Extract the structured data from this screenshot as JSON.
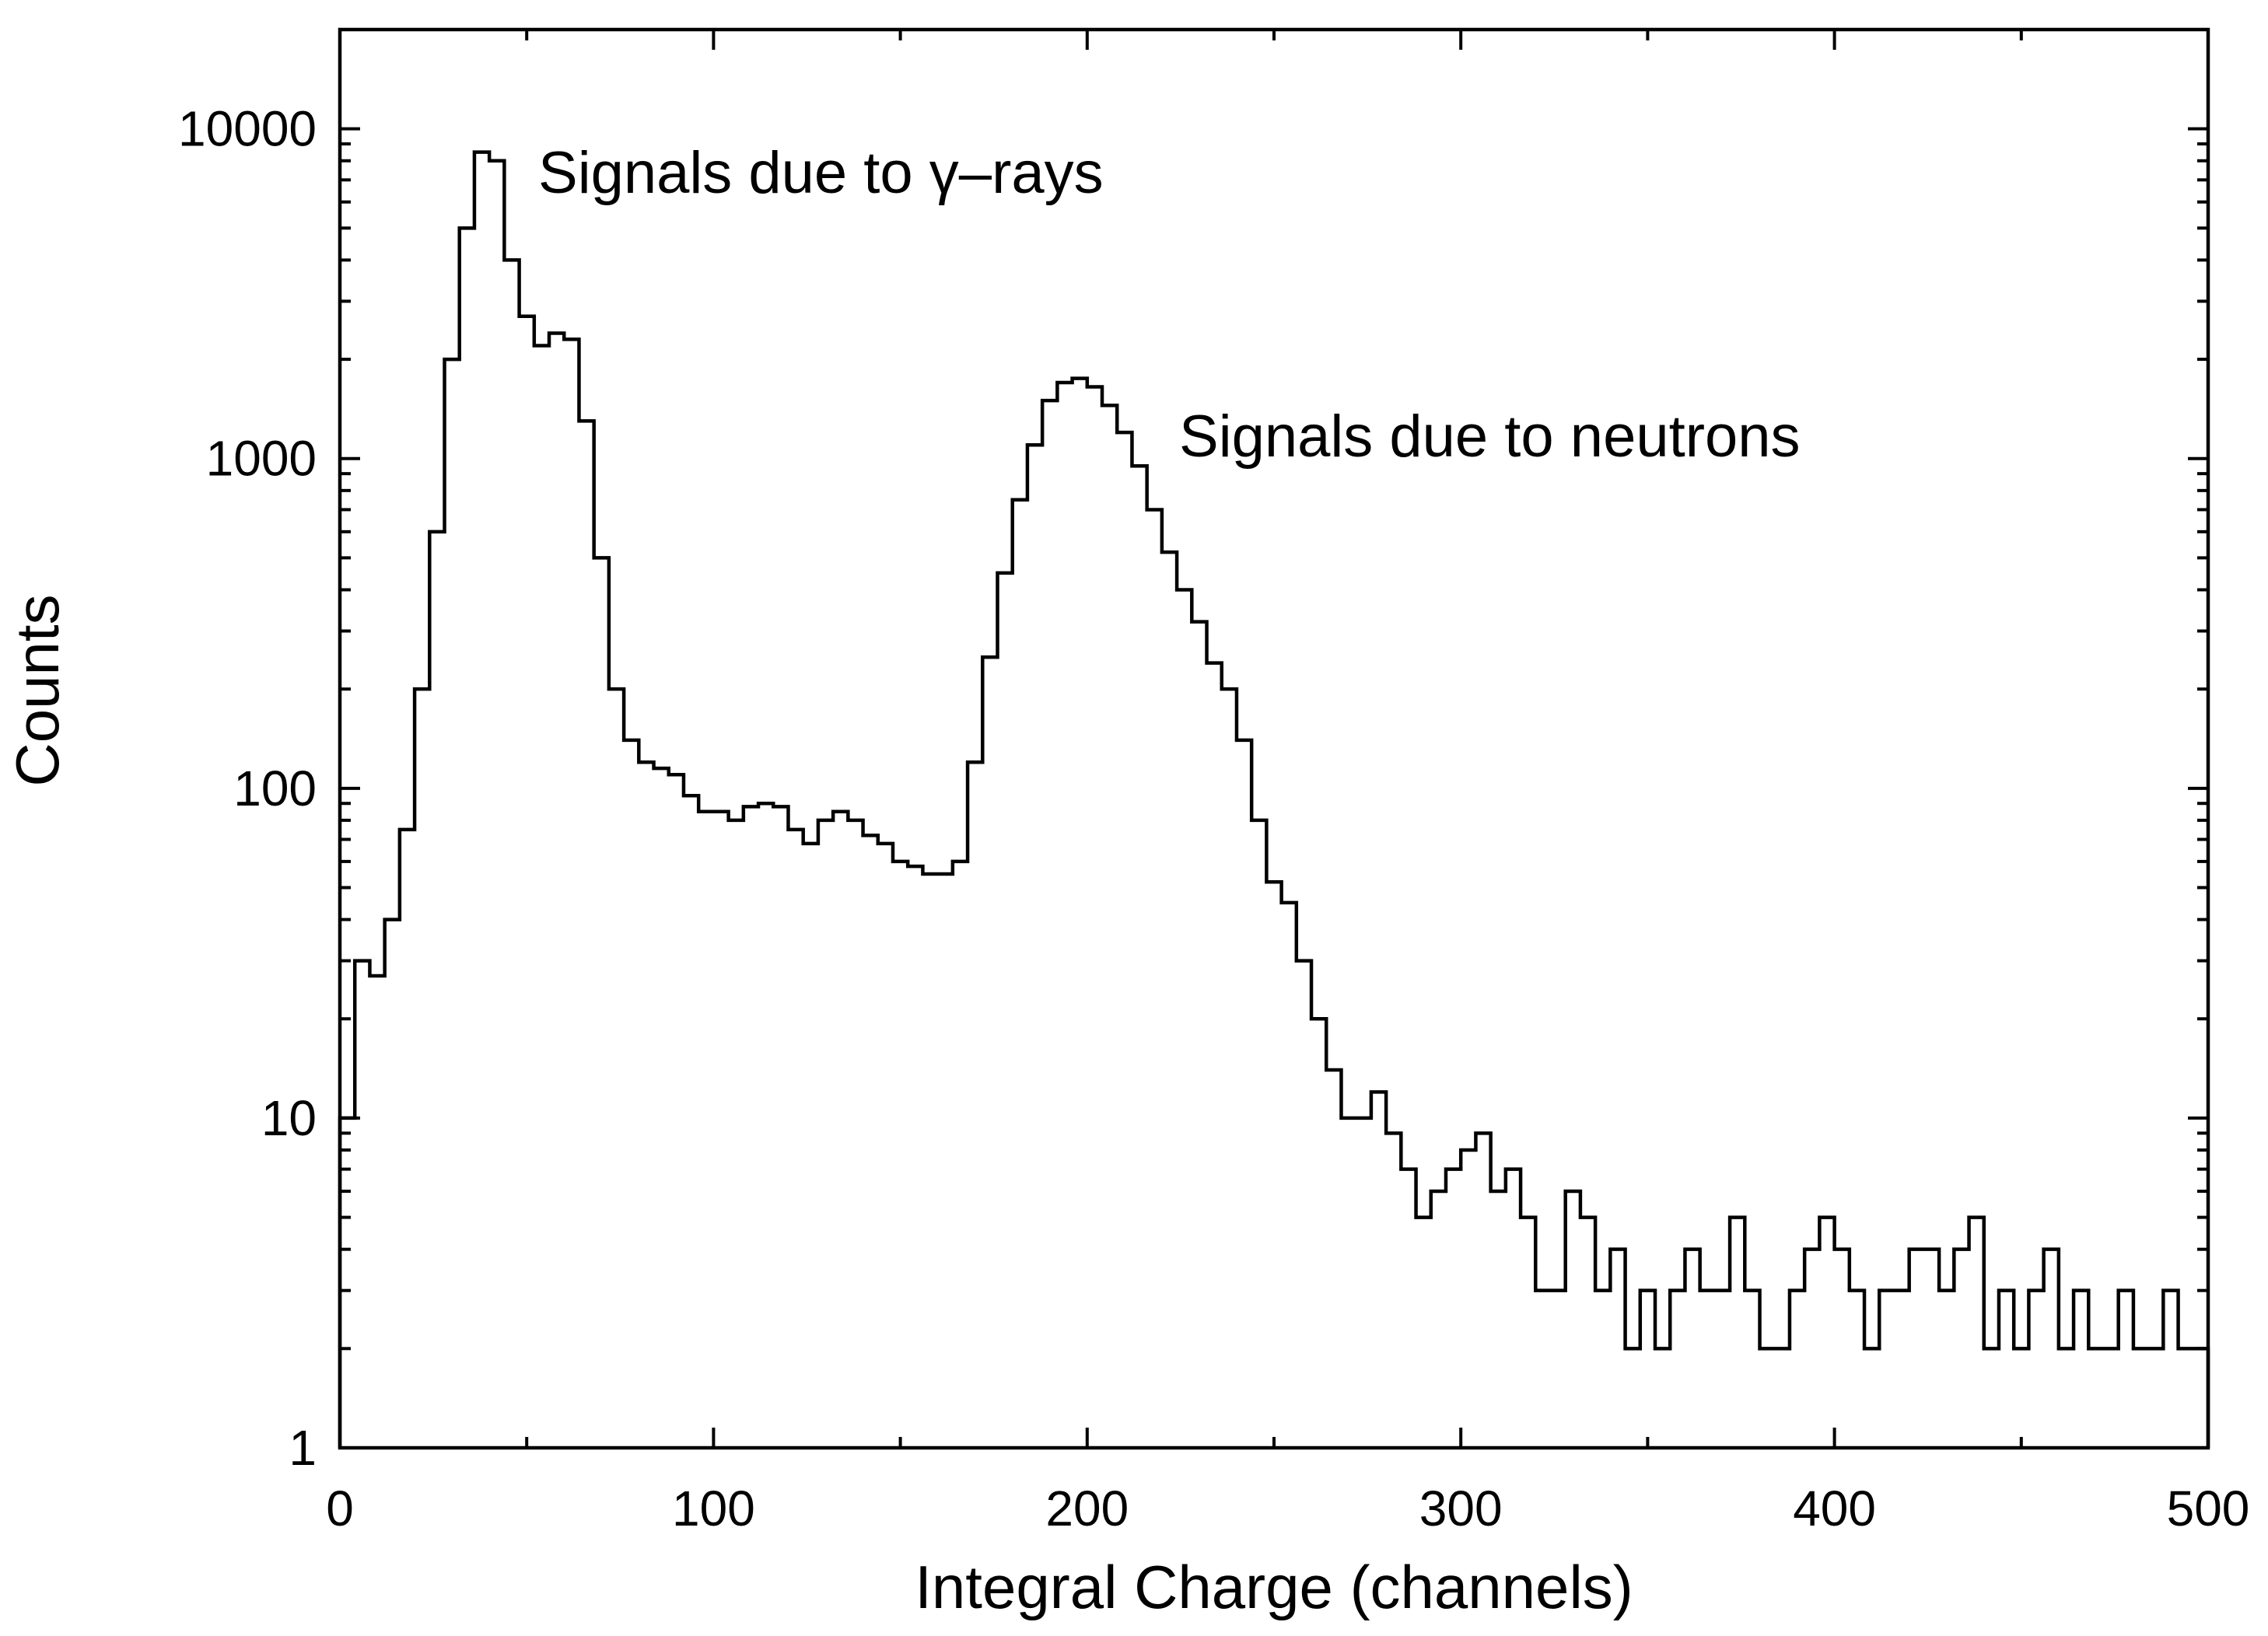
{
  "chart_data": {
    "type": "histogram",
    "xlabel": "Integral Charge (channels)",
    "ylabel": "Counts",
    "annotations": [
      "Signals due to γ–rays",
      "Signals due to neutrons"
    ],
    "bins": [
      0,
      4,
      8,
      12,
      16,
      20,
      24,
      28,
      32,
      36,
      40,
      44,
      48,
      52,
      56,
      60,
      64,
      68,
      72,
      76,
      80,
      84,
      88,
      92,
      96,
      100,
      104,
      108,
      112,
      116,
      120,
      124,
      128,
      132,
      136,
      140,
      144,
      148,
      152,
      156,
      160,
      164,
      168,
      172,
      176,
      180,
      184,
      188,
      192,
      196,
      200,
      204,
      208,
      212,
      216,
      220,
      224,
      228,
      232,
      236,
      240,
      244,
      248,
      252,
      256,
      260,
      264,
      268,
      272,
      276,
      280,
      284,
      288,
      292,
      296,
      300,
      304,
      308,
      312,
      316,
      320,
      324,
      328,
      332,
      336,
      340,
      344,
      348,
      352,
      356,
      360,
      364,
      368,
      372,
      376,
      380,
      384,
      388,
      392,
      396,
      400,
      404,
      408,
      412,
      416,
      420,
      424,
      428,
      432,
      436,
      440,
      444,
      448,
      452,
      456,
      460,
      464,
      468,
      472,
      476,
      480,
      484,
      488,
      492,
      496,
      500
    ],
    "values": [
      10,
      30,
      27,
      40,
      75,
      200,
      600,
      2000,
      5000,
      8500,
      8000,
      4000,
      2700,
      2200,
      2400,
      2300,
      1300,
      500,
      200,
      140,
      120,
      115,
      110,
      95,
      85,
      85,
      80,
      88,
      90,
      88,
      75,
      68,
      80,
      85,
      80,
      72,
      68,
      60,
      58,
      55,
      55,
      60,
      120,
      250,
      450,
      750,
      1100,
      1500,
      1700,
      1750,
      1650,
      1450,
      1200,
      950,
      700,
      520,
      400,
      320,
      240,
      200,
      140,
      80,
      52,
      45,
      30,
      20,
      14,
      10,
      10,
      12,
      9,
      7,
      5,
      6,
      7,
      8,
      9,
      6,
      7,
      5,
      3,
      3,
      6,
      5,
      3,
      4,
      2,
      3,
      2,
      3,
      4,
      3,
      3,
      5,
      3,
      2,
      2,
      3,
      4,
      5,
      4,
      3,
      2,
      3,
      3,
      4,
      4,
      3,
      4,
      5,
      2,
      3,
      2,
      3,
      4,
      2,
      3,
      2,
      2,
      3,
      2,
      2,
      3,
      2,
      2
    ],
    "color": "#000000",
    "xlim": [
      0,
      500
    ],
    "xticks": [
      0,
      100,
      200,
      300,
      400,
      500
    ],
    "xminorticks": [
      50,
      150,
      250,
      350,
      450
    ],
    "ylim": [
      1,
      20000
    ],
    "yscale": "log",
    "yticks": [
      1,
      10,
      100,
      1000,
      10000
    ],
    "yminorticks": [
      2,
      3,
      4,
      5,
      6,
      7,
      8,
      9,
      20,
      30,
      40,
      50,
      60,
      70,
      80,
      90,
      200,
      300,
      400,
      500,
      600,
      700,
      800,
      900,
      2000,
      3000,
      4000,
      5000,
      6000,
      7000,
      8000,
      9000,
      20000
    ]
  }
}
